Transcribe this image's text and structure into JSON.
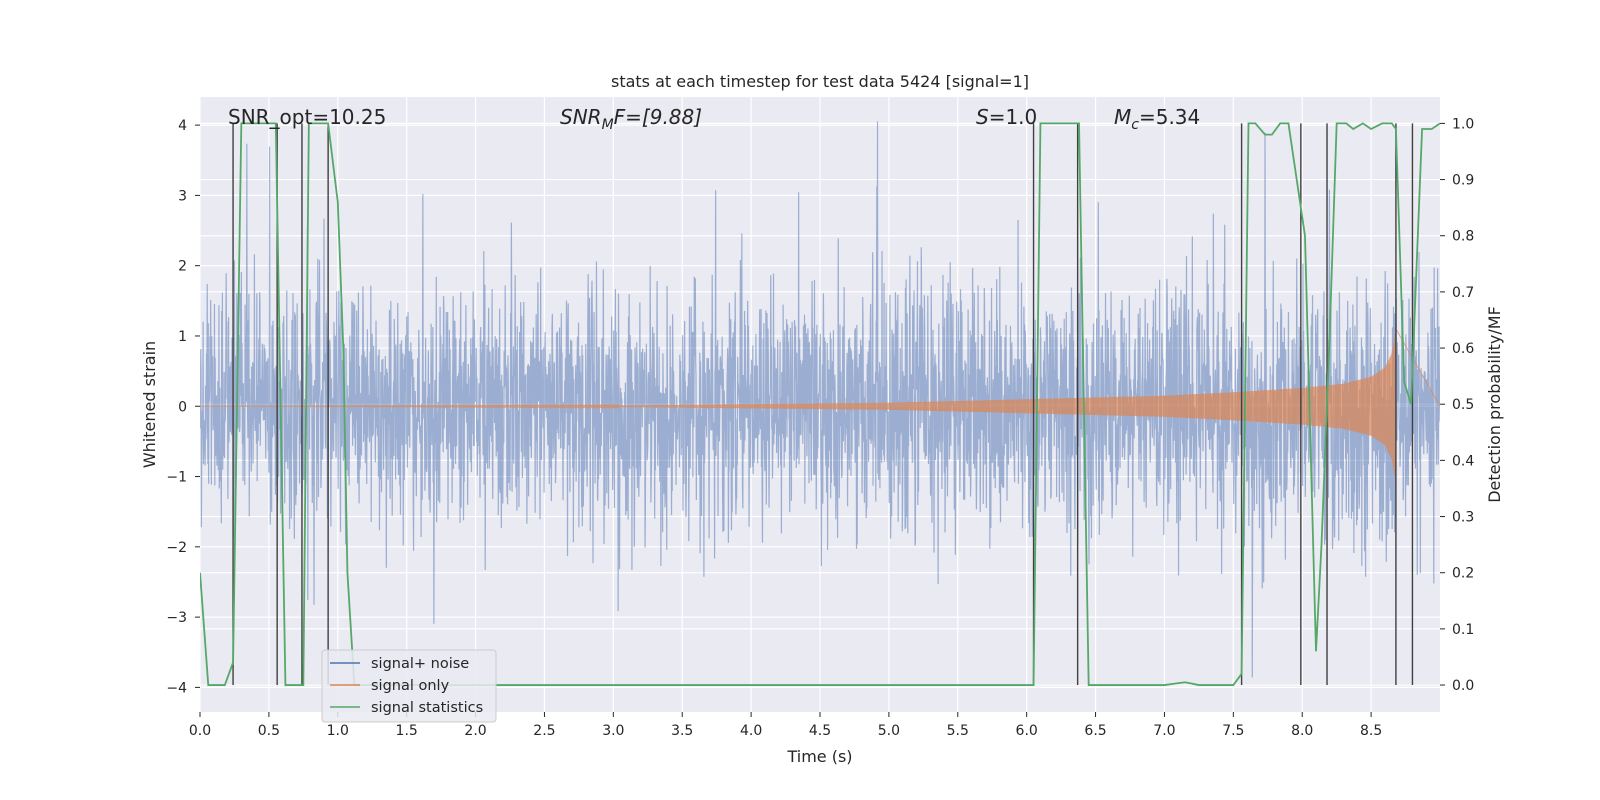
{
  "chart_data": {
    "type": "line",
    "title": "stats at each timestep for test data 5424 [signal=1]",
    "xlabel": "Time (s)",
    "ylabel_left": "Whitened strain",
    "ylabel_right": "Detection probability/MF",
    "xlim": [
      0.0,
      9.0
    ],
    "ylim_left": [
      -4.35,
      4.4
    ],
    "ylim_right": [
      -0.048,
      1.047
    ],
    "x_ticks": [
      "0.0",
      "0.5",
      "1.0",
      "1.5",
      "2.0",
      "2.5",
      "3.0",
      "3.5",
      "4.0",
      "4.5",
      "5.0",
      "5.5",
      "6.0",
      "6.5",
      "7.0",
      "7.5",
      "8.0",
      "8.5"
    ],
    "y_ticks_left": [
      "−4",
      "−3",
      "−2",
      "−1",
      "0",
      "1",
      "2",
      "3",
      "4"
    ],
    "y_ticks_right": [
      "0.0",
      "0.1",
      "0.2",
      "0.3",
      "0.4",
      "0.5",
      "0.6",
      "0.7",
      "0.8",
      "0.9",
      "1.0"
    ],
    "grid": true,
    "legend_placement": "lower-left",
    "annotations": {
      "snr_opt": "SNR_opt=10.25",
      "snr_mf_prefix": "SNR",
      "snr_mf_sub": "M",
      "snr_mf_suffix": "F=[9.88]",
      "s_prefix": "S",
      "s_suffix": "=1.0",
      "mc_prefix": "M",
      "mc_sub": "c",
      "mc_suffix": "=5.34"
    },
    "series": [
      {
        "name": "signal+ noise",
        "color": "#4c72b0",
        "axis": "left",
        "description_values": "white noise, approx std 0.85, peaks up to ±4",
        "noise_std": 0.85
      },
      {
        "name": "signal only",
        "color": "#dd8452",
        "axis": "left",
        "envelope": {
          "x": [
            0.0,
            3.0,
            5.0,
            6.0,
            7.0,
            7.5,
            8.0,
            8.3,
            8.5,
            8.6,
            8.65,
            8.68
          ],
          "amplitude": [
            0.0,
            0.01,
            0.05,
            0.1,
            0.15,
            0.2,
            0.26,
            0.32,
            0.42,
            0.55,
            0.75,
            1.1
          ]
        }
      },
      {
        "name": "signal statistics",
        "color": "#55a868",
        "axis": "right",
        "x": [
          0.0,
          0.06,
          0.18,
          0.24,
          0.3,
          0.55,
          0.62,
          0.7,
          0.75,
          0.79,
          0.93,
          1.0,
          1.04,
          1.07,
          1.12,
          1.2,
          6.05,
          6.1,
          6.15,
          6.38,
          6.45,
          6.52,
          7.0,
          7.15,
          7.25,
          7.5,
          7.56,
          7.61,
          7.66,
          7.73,
          7.78,
          7.84,
          7.9,
          8.02,
          8.1,
          8.14,
          8.2,
          8.25,
          8.32,
          8.37,
          8.44,
          8.5,
          8.58,
          8.65,
          8.68,
          8.74,
          8.79,
          8.87,
          8.94,
          9.0
        ],
        "y": [
          0.2,
          0.0,
          0.0,
          0.04,
          1.0,
          1.0,
          0.0,
          0.0,
          0.0,
          1.0,
          1.0,
          0.86,
          0.6,
          0.2,
          0.0,
          0.0,
          0.0,
          1.0,
          1.0,
          1.0,
          0.0,
          0.0,
          0.0,
          0.005,
          0.0,
          0.0,
          0.02,
          1.0,
          1.0,
          0.98,
          0.98,
          1.0,
          1.0,
          0.8,
          0.06,
          0.25,
          0.63,
          1.0,
          1.0,
          0.99,
          1.0,
          0.99,
          1.0,
          1.0,
          0.99,
          0.54,
          0.5,
          0.99,
          0.99,
          1.0
        ]
      }
    ],
    "vertical_lines": [
      0.24,
      0.56,
      0.74,
      0.93,
      6.05,
      6.37,
      7.56,
      7.99,
      8.18,
      8.68,
      8.8
    ]
  },
  "legend": {
    "items": [
      {
        "label": "signal+ noise",
        "color": "#4c72b0"
      },
      {
        "label": "signal only",
        "color": "#dd8452"
      },
      {
        "label": "signal statistics",
        "color": "#55a868"
      }
    ]
  }
}
